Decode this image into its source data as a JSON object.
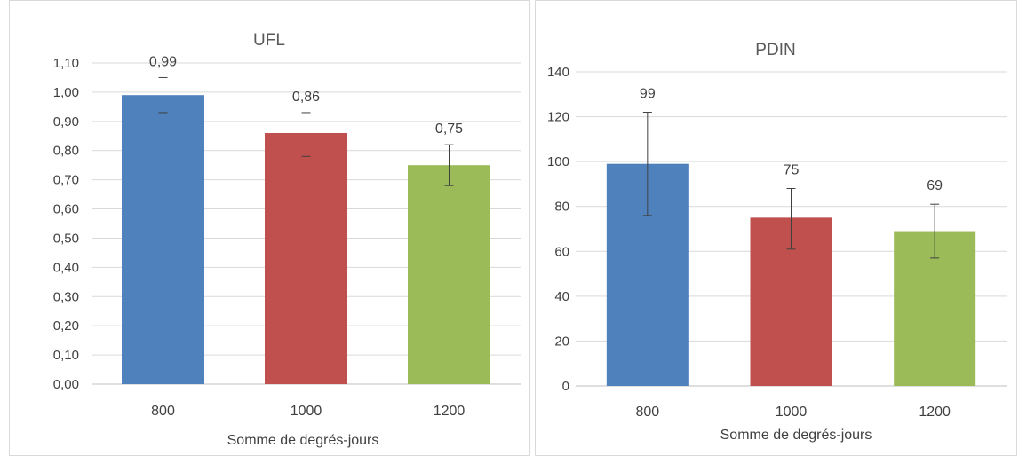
{
  "chart_data": [
    {
      "type": "bar",
      "title": "UFL",
      "xlabel": "Somme de degrés-jours",
      "ylabel": "",
      "categories": [
        "800",
        "1000",
        "1200"
      ],
      "values": [
        0.99,
        0.86,
        0.75
      ],
      "value_labels": [
        "0,99",
        "0,86",
        "0,75"
      ],
      "error_bars": [
        {
          "low": 0.93,
          "high": 1.05
        },
        {
          "low": 0.78,
          "high": 0.93
        },
        {
          "low": 0.68,
          "high": 0.82
        }
      ],
      "colors": [
        "#4f81bd",
        "#c0504d",
        "#9bbb59"
      ],
      "ylim": [
        0,
        1.1
      ],
      "y_ticks": [
        0,
        0.1,
        0.2,
        0.3,
        0.4,
        0.5,
        0.6,
        0.7,
        0.8,
        0.9,
        1.0,
        1.1
      ],
      "y_tick_labels": [
        "0,00",
        "0,10",
        "0,20",
        "0,30",
        "0,40",
        "0,50",
        "0,60",
        "0,70",
        "0,80",
        "0,90",
        "1,00",
        "1,10"
      ],
      "grid": true,
      "legend": "none"
    },
    {
      "type": "bar",
      "title": "PDIN",
      "xlabel": "Somme de degrés-jours",
      "ylabel": "",
      "categories": [
        "800",
        "1000",
        "1200"
      ],
      "values": [
        99,
        75,
        69
      ],
      "value_labels": [
        "99",
        "75",
        "69"
      ],
      "error_bars": [
        {
          "low": 76,
          "high": 122
        },
        {
          "low": 61,
          "high": 88
        },
        {
          "low": 57,
          "high": 81
        }
      ],
      "colors": [
        "#4f81bd",
        "#c0504d",
        "#9bbb59"
      ],
      "ylim": [
        0,
        140
      ],
      "y_ticks": [
        0,
        20,
        40,
        60,
        80,
        100,
        120,
        140
      ],
      "y_tick_labels": [
        "0",
        "20",
        "40",
        "60",
        "80",
        "100",
        "120",
        "140"
      ],
      "grid": true,
      "legend": "none"
    }
  ]
}
